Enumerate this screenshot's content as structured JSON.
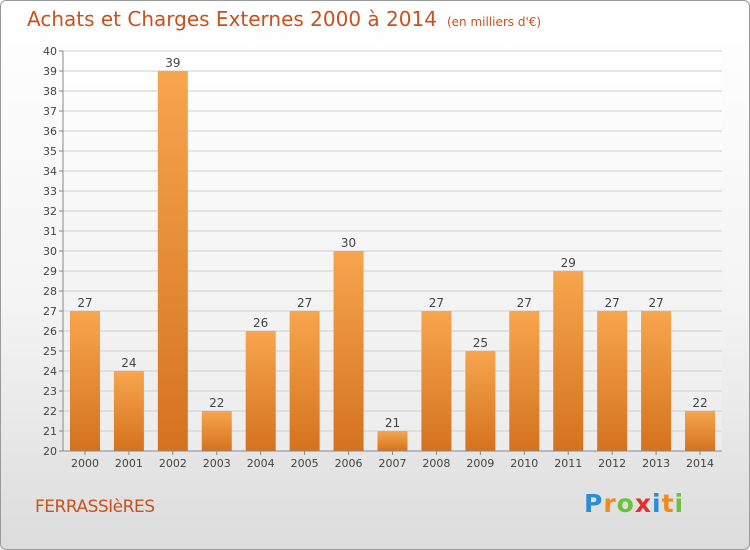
{
  "title": "Achats et Charges Externes 2000 à 2014",
  "unit": "(en milliers d'€)",
  "commune": "FERRASSIèRES",
  "logo": {
    "letters": [
      "P",
      "r",
      "o",
      "x",
      "i",
      "t",
      "i"
    ],
    "colors": [
      "#2a8ed6",
      "#f08c1a",
      "#6cc13c",
      "#e03030",
      "#2a8ed6",
      "#f08c1a",
      "#6cc13c"
    ]
  },
  "colors": {
    "bar_top": "#f7a54e",
    "bar_bottom": "#d4721f",
    "grid": "#cfcfcf",
    "text": "#444444",
    "accent": "#c8511e"
  },
  "chart_data": {
    "type": "bar",
    "categories": [
      "2000",
      "2001",
      "2002",
      "2003",
      "2004",
      "2005",
      "2006",
      "2007",
      "2008",
      "2009",
      "2010",
      "2011",
      "2012",
      "2013",
      "2014"
    ],
    "values": [
      27,
      24,
      39,
      22,
      26,
      27,
      30,
      21,
      27,
      25,
      27,
      29,
      27,
      27,
      22
    ],
    "ylim": [
      20,
      40
    ],
    "yticks": [
      20,
      21,
      22,
      23,
      24,
      25,
      26,
      27,
      28,
      29,
      30,
      31,
      32,
      33,
      34,
      35,
      36,
      37,
      38,
      39,
      40
    ],
    "grid": true
  }
}
